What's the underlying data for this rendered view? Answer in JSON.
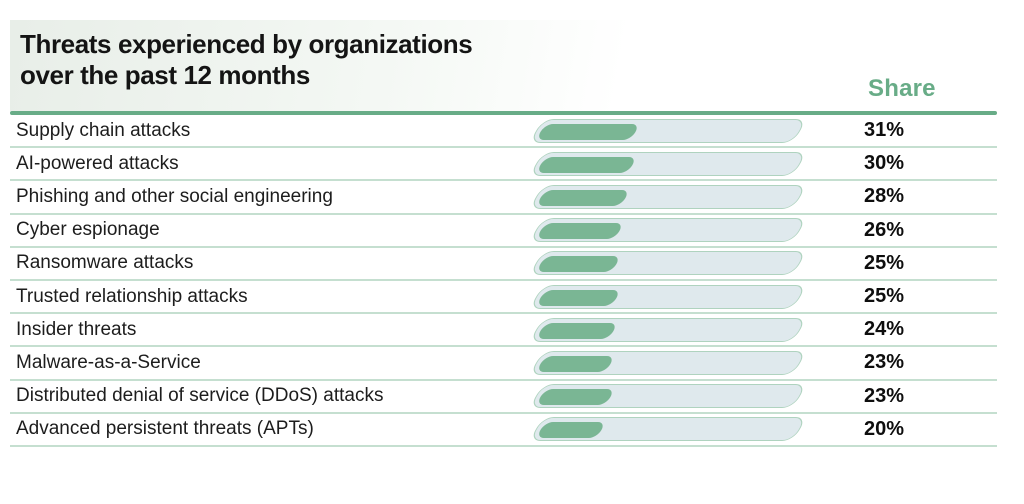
{
  "header": {
    "title_lines": [
      "Threats experienced by organizations",
      "over the past 12 months"
    ],
    "share_column_label": "Share"
  },
  "colors": {
    "accent_green": "#68ac87",
    "bar_fill_green": "#7ab694",
    "bar_track_fill": "#dfe9ed",
    "bar_track_border": "#afd3bf",
    "row_separator": "#c5dfd0",
    "title_text": "#141414"
  },
  "chart_data": {
    "type": "bar",
    "orientation": "horizontal",
    "title": "Threats experienced by organizations over the past 12 months",
    "value_column_label": "Share",
    "unit": "%",
    "xlim": [
      0,
      100
    ],
    "legend": "none",
    "grid": false,
    "rows": [
      {
        "label": "Supply chain attacks",
        "value": 31,
        "share": "31%"
      },
      {
        "label": "AI-powered attacks",
        "value": 30,
        "share": "30%"
      },
      {
        "label": "Phishing and other social engineering",
        "value": 28,
        "share": "28%"
      },
      {
        "label": "Cyber espionage",
        "value": 26,
        "share": "26%"
      },
      {
        "label": "Ransomware attacks",
        "value": 25,
        "share": "25%"
      },
      {
        "label": "Trusted relationship attacks",
        "value": 25,
        "share": "25%"
      },
      {
        "label": "Insider threats",
        "value": 24,
        "share": "24%"
      },
      {
        "label": "Malware-as-a-Service",
        "value": 23,
        "share": "23%"
      },
      {
        "label": "Distributed denial of service (DDoS) attacks",
        "value": 23,
        "share": "23%"
      },
      {
        "label": "Advanced persistent threats (APTs)",
        "value": 20,
        "share": "20%"
      }
    ]
  }
}
